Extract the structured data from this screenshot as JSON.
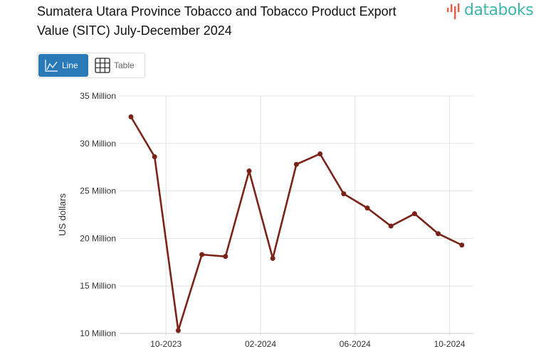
{
  "title": "Sumatera Utara Province Tobacco and Tobacco Product Export Value (SITC) July-December 2024",
  "logo": {
    "text": "databoks",
    "brand_color": "#3fb5ad",
    "accent_color": "#e8604c"
  },
  "toolbar": {
    "line_label": "Line",
    "table_label": "Table",
    "active": "line",
    "active_color": "#2a7ab8"
  },
  "chart_data": {
    "type": "line",
    "title": "Sumatera Utara Province Tobacco and Tobacco Product Export Value (SITC) July-December 2024",
    "xlabel": "",
    "ylabel": "US dollars",
    "ylim": [
      10,
      35
    ],
    "y_unit": "Million",
    "yticks": [
      10,
      15,
      20,
      25,
      30,
      35
    ],
    "ytick_labels": [
      "10 Million",
      "15 Million",
      "20 Million",
      "25 Million",
      "30 Million",
      "35 Million"
    ],
    "xtick_labels": [
      {
        "label": "10-2023",
        "index": 1
      },
      {
        "label": "02-2024",
        "index": 5
      },
      {
        "label": "06-2024",
        "index": 9
      },
      {
        "label": "10-2024",
        "index": 13
      }
    ],
    "grid": true,
    "line_color": "#7a2318",
    "x": [
      "09-2023",
      "10-2023",
      "11-2023",
      "12-2023",
      "01-2024",
      "02-2024",
      "03-2024",
      "04-2024",
      "05-2024",
      "06-2024",
      "07-2024",
      "08-2024",
      "09-2024",
      "10-2024",
      "11-2024"
    ],
    "series": [
      {
        "name": "Export Value",
        "values": [
          32.8,
          28.6,
          10.3,
          18.3,
          18.1,
          27.1,
          17.9,
          27.8,
          28.9,
          24.7,
          23.2,
          21.3,
          22.6,
          20.5,
          19.3
        ]
      }
    ]
  }
}
